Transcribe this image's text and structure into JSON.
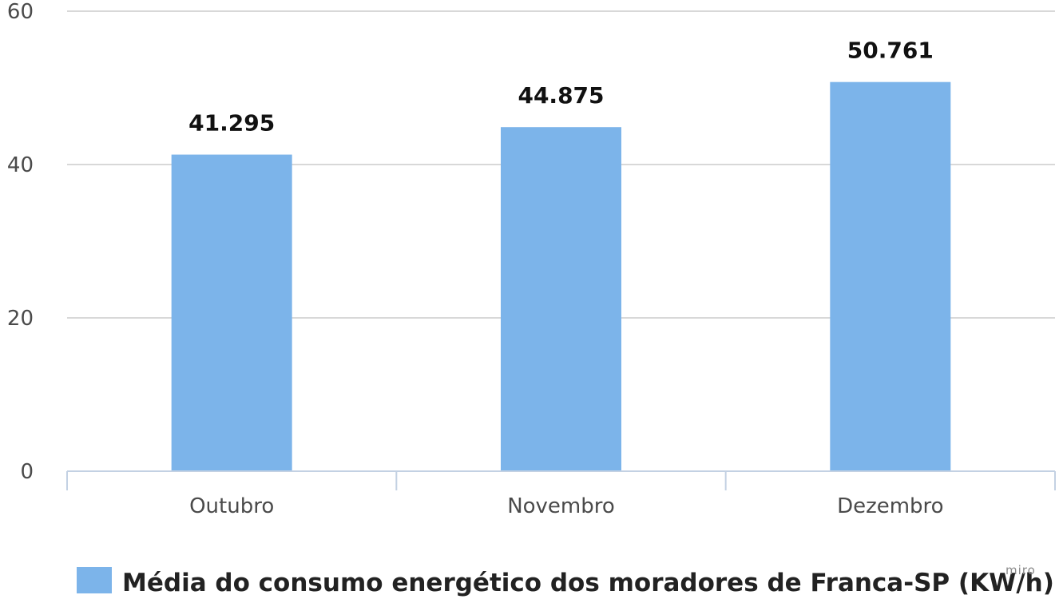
{
  "chart_data": {
    "type": "bar",
    "categories": [
      "Outubro",
      "Novembro",
      "Dezembro"
    ],
    "series": [
      {
        "name": "Média do consumo energético dos moradores de Franca-SP (KW/h)",
        "values": [
          41.295,
          44.875,
          50.761
        ],
        "value_labels": [
          "41.295",
          "44.875",
          "50.761"
        ],
        "color": "#7cb4ea"
      }
    ],
    "ylim": [
      0,
      60
    ],
    "yticks": [
      0,
      20,
      40,
      60
    ],
    "grid": true,
    "legend_position": "bottom-center"
  },
  "watermark": "miro",
  "colors": {
    "grid": "#d8d8d8",
    "axis": "#c3d1e3",
    "bar": "#7cb4ea"
  }
}
